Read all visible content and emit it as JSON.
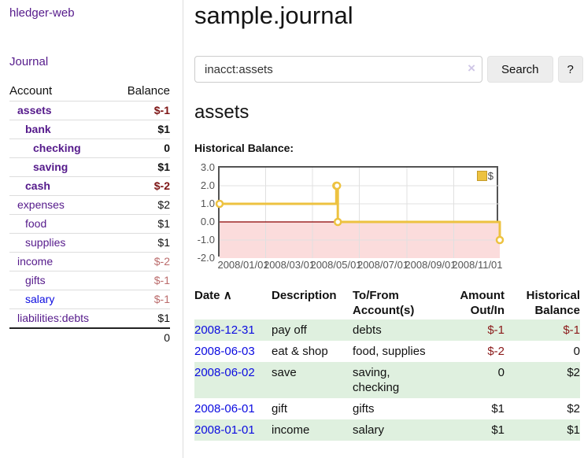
{
  "sidebar": {
    "brand": "hledger-web",
    "journal_link": "Journal",
    "accounts_table": {
      "headers": {
        "account": "Account",
        "balance": "Balance"
      },
      "rows": [
        {
          "account": "assets",
          "balance": "$-1",
          "depth": 1,
          "bold": true,
          "balance_style": "neg-strong"
        },
        {
          "account": "bank",
          "balance": "$1",
          "depth": 2,
          "bold": true,
          "balance_style": ""
        },
        {
          "account": "checking",
          "balance": "0",
          "depth": 3,
          "bold": true,
          "balance_style": ""
        },
        {
          "account": "saving",
          "balance": "$1",
          "depth": 3,
          "bold": true,
          "balance_style": ""
        },
        {
          "account": "cash",
          "balance": "$-2",
          "depth": 2,
          "bold": true,
          "balance_style": "neg-strong"
        },
        {
          "account": "expenses",
          "balance": "$2",
          "depth": 1,
          "bold": false,
          "balance_style": ""
        },
        {
          "account": "food",
          "balance": "$1",
          "depth": 2,
          "bold": false,
          "balance_style": ""
        },
        {
          "account": "supplies",
          "balance": "$1",
          "depth": 2,
          "bold": false,
          "balance_style": ""
        },
        {
          "account": "income",
          "balance": "$-2",
          "depth": 1,
          "bold": false,
          "balance_style": "neg-muted"
        },
        {
          "account": "gifts",
          "balance": "$-1",
          "depth": 2,
          "bold": false,
          "balance_style": "neg-muted"
        },
        {
          "account": "salary",
          "balance": "$-1",
          "depth": 2,
          "bold": false,
          "balance_style": "neg-muted",
          "link_color": "blue"
        },
        {
          "account": "liabilities:debts",
          "balance": "$1",
          "depth": 1,
          "bold": false,
          "balance_style": ""
        }
      ],
      "total": "0"
    }
  },
  "header": {
    "title": "sample.journal"
  },
  "search": {
    "value": "inacct:assets",
    "clear_icon": "×",
    "button_label": "Search",
    "help_label": "?"
  },
  "account_page": {
    "heading": "assets",
    "chart_label": "Historical Balance:"
  },
  "chart_data": {
    "type": "line",
    "step": true,
    "title": "Historical Balance",
    "series": [
      {
        "name": "$",
        "points": [
          [
            "2008-01-01",
            1
          ],
          [
            "2008-06-01",
            2
          ],
          [
            "2008-06-02",
            2
          ],
          [
            "2008-06-03",
            0
          ],
          [
            "2008-12-31",
            -1
          ]
        ]
      }
    ],
    "xlim": [
      "2008-01-01",
      "2008-12-31"
    ],
    "ylim": [
      -2,
      3
    ],
    "y_ticks": [
      "3.0",
      "2.0",
      "1.0",
      "0.0",
      "-1.0",
      "-2.0"
    ],
    "y_gridlines": [
      2,
      1,
      -1
    ],
    "x_ticks": [
      {
        "label": "2008/01/01",
        "date": "2008-01-01"
      },
      {
        "label": "2008/03/01",
        "date": "2008-03-01"
      },
      {
        "label": "2008/05/01",
        "date": "2008-05-01"
      },
      {
        "label": "2008/07/01",
        "date": "2008-07-01"
      },
      {
        "label": "2008/09/01",
        "date": "2008-09-01"
      },
      {
        "label": "2008/11/01",
        "date": "2008-11-01"
      }
    ],
    "legend_position": "top-right",
    "grid": true,
    "colors": {
      "line": "#edc240",
      "marker_fill": "#ffffff",
      "zero_line": "#8b0000",
      "negative_fill": "#fbdcdc",
      "grid": "#e0e0e0",
      "border": "#545454"
    }
  },
  "register_table": {
    "headers": {
      "date": "Date",
      "sort_icon": "∧",
      "description": "Description",
      "accounts": "To/From Account(s)",
      "amount": "Amount Out/In",
      "balance": "Historical Balance"
    },
    "rows": [
      {
        "date": "2008-12-31",
        "description": "pay off",
        "accounts": "debts",
        "amount": "$-1",
        "amount_neg": true,
        "balance": "$-1",
        "balance_neg": true
      },
      {
        "date": "2008-06-03",
        "description": "eat & shop",
        "accounts": "food, supplies",
        "amount": "$-2",
        "amount_neg": true,
        "balance": "0",
        "balance_neg": false
      },
      {
        "date": "2008-06-02",
        "description": "save",
        "accounts": "saving,\nchecking",
        "amount": "0",
        "amount_neg": false,
        "balance": "$2",
        "balance_neg": false
      },
      {
        "date": "2008-06-01",
        "description": "gift",
        "accounts": "gifts",
        "amount": "$1",
        "amount_neg": false,
        "balance": "$2",
        "balance_neg": false
      },
      {
        "date": "2008-01-01",
        "description": "income",
        "accounts": "salary",
        "amount": "$1",
        "amount_neg": false,
        "balance": "$1",
        "balance_neg": false
      }
    ]
  },
  "colors": {
    "link_purple": "#551a8b",
    "link_blue": "#0b0be0",
    "negative_strong": "#7d1414",
    "negative_muted": "#bb6c6c",
    "negative_table": "#8b1a1a",
    "row_stripe_green": "#dff0df",
    "chart_line": "#edc240"
  }
}
